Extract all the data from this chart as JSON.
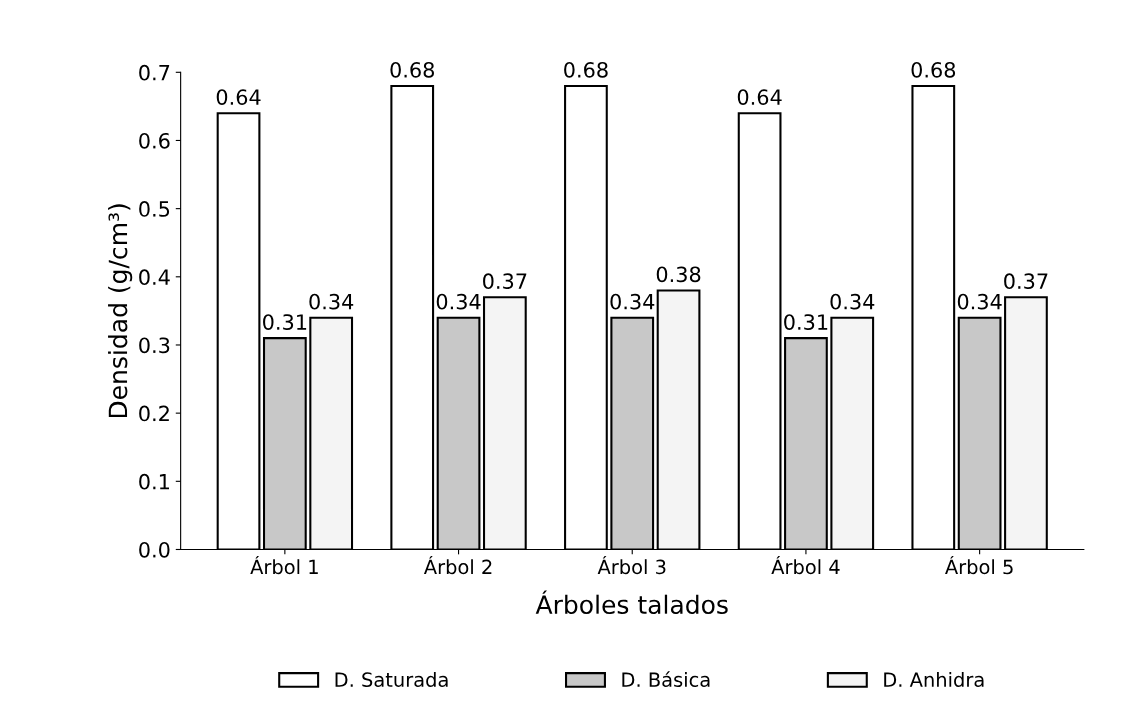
{
  "chart_data": {
    "type": "bar",
    "xlabel": "Árboles talados",
    "ylabel": "Densidad (g/cm³)",
    "categories": [
      "Árbol 1",
      "Árbol 2",
      "Árbol 3",
      "Árbol 4",
      "Árbol 5"
    ],
    "series": [
      {
        "name": "D. Saturada",
        "color": "#ffffff",
        "values": [
          0.64,
          0.68,
          0.68,
          0.64,
          0.68
        ]
      },
      {
        "name": "D. Básica",
        "color": "#c8c8c8",
        "values": [
          0.31,
          0.34,
          0.34,
          0.31,
          0.34
        ]
      },
      {
        "name": "D. Anhidra",
        "color": "#f4f4f4",
        "values": [
          0.34,
          0.37,
          0.38,
          0.34,
          0.37
        ]
      }
    ],
    "ylim": [
      0,
      0.7
    ],
    "yticks": [
      {
        "value": 0,
        "label": "0.0"
      },
      0.1,
      0.2,
      0.3,
      0.4,
      0.5,
      0.6,
      0.7
    ],
    "data_labels": true,
    "legend": "bottom",
    "grid": false
  }
}
